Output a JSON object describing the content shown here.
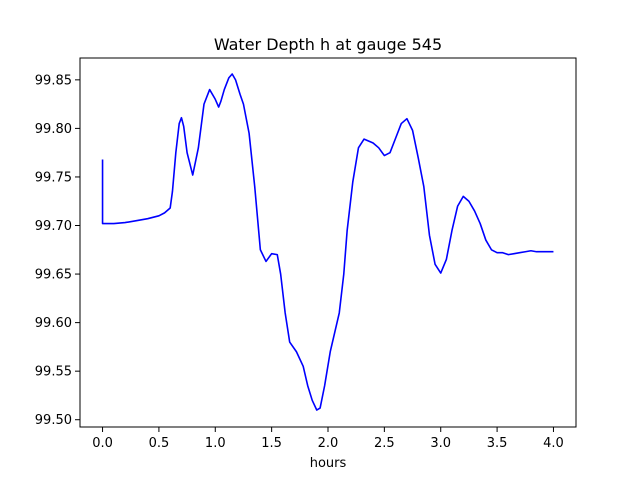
{
  "chart_data": {
    "type": "line",
    "title": "Water Depth h at gauge 545",
    "xlabel": "hours",
    "ylabel": "",
    "xlim": [
      -0.2,
      4.2
    ],
    "ylim": [
      99.4925,
      99.8725
    ],
    "xticks": [
      0.0,
      0.5,
      1.0,
      1.5,
      2.0,
      2.5,
      3.0,
      3.5,
      4.0
    ],
    "xtick_labels": [
      "0.0",
      "0.5",
      "1.0",
      "1.5",
      "2.0",
      "2.5",
      "3.0",
      "3.5",
      "4.0"
    ],
    "yticks": [
      99.5,
      99.55,
      99.6,
      99.65,
      99.7,
      99.75,
      99.8,
      99.85
    ],
    "ytick_labels": [
      "99.50",
      "99.55",
      "99.60",
      "99.65",
      "99.70",
      "99.75",
      "99.80",
      "99.85"
    ],
    "grid": false,
    "series": [
      {
        "color": "#0000ff",
        "x": [
          0.0,
          0.0,
          0.1,
          0.2,
          0.3,
          0.4,
          0.5,
          0.55,
          0.6,
          0.62,
          0.65,
          0.68,
          0.7,
          0.72,
          0.75,
          0.8,
          0.85,
          0.9,
          0.95,
          1.0,
          1.03,
          1.05,
          1.08,
          1.12,
          1.15,
          1.18,
          1.22,
          1.25,
          1.3,
          1.35,
          1.4,
          1.45,
          1.5,
          1.55,
          1.58,
          1.62,
          1.66,
          1.72,
          1.78,
          1.82,
          1.86,
          1.9,
          1.93,
          1.97,
          2.02,
          2.06,
          2.1,
          2.14,
          2.17,
          2.22,
          2.27,
          2.32,
          2.38,
          2.4,
          2.45,
          2.5,
          2.55,
          2.6,
          2.65,
          2.7,
          2.75,
          2.8,
          2.85,
          2.9,
          2.95,
          3.0,
          3.05,
          3.1,
          3.15,
          3.2,
          3.25,
          3.3,
          3.35,
          3.4,
          3.45,
          3.5,
          3.55,
          3.6,
          3.65,
          3.7,
          3.75,
          3.8,
          3.85,
          3.9,
          3.95,
          4.0
        ],
        "y": [
          99.768,
          99.702,
          99.702,
          99.703,
          99.705,
          99.707,
          99.71,
          99.713,
          99.718,
          99.735,
          99.775,
          99.805,
          99.811,
          99.802,
          99.775,
          99.752,
          99.78,
          99.825,
          99.84,
          99.83,
          99.822,
          99.828,
          99.84,
          99.852,
          99.856,
          99.85,
          99.835,
          99.825,
          99.795,
          99.74,
          99.675,
          99.663,
          99.671,
          99.67,
          99.65,
          99.61,
          99.58,
          99.57,
          99.555,
          99.535,
          99.52,
          99.51,
          99.512,
          99.535,
          99.57,
          99.59,
          99.61,
          99.65,
          99.695,
          99.745,
          99.78,
          99.789,
          99.786,
          99.785,
          99.78,
          99.772,
          99.775,
          99.79,
          99.805,
          99.81,
          99.798,
          99.77,
          99.74,
          99.69,
          99.66,
          99.651,
          99.665,
          99.695,
          99.72,
          99.73,
          99.725,
          99.715,
          99.702,
          99.685,
          99.675,
          99.672,
          99.672,
          99.67,
          99.671,
          99.672,
          99.673,
          99.674,
          99.673,
          99.673,
          99.673,
          99.673
        ]
      }
    ]
  }
}
